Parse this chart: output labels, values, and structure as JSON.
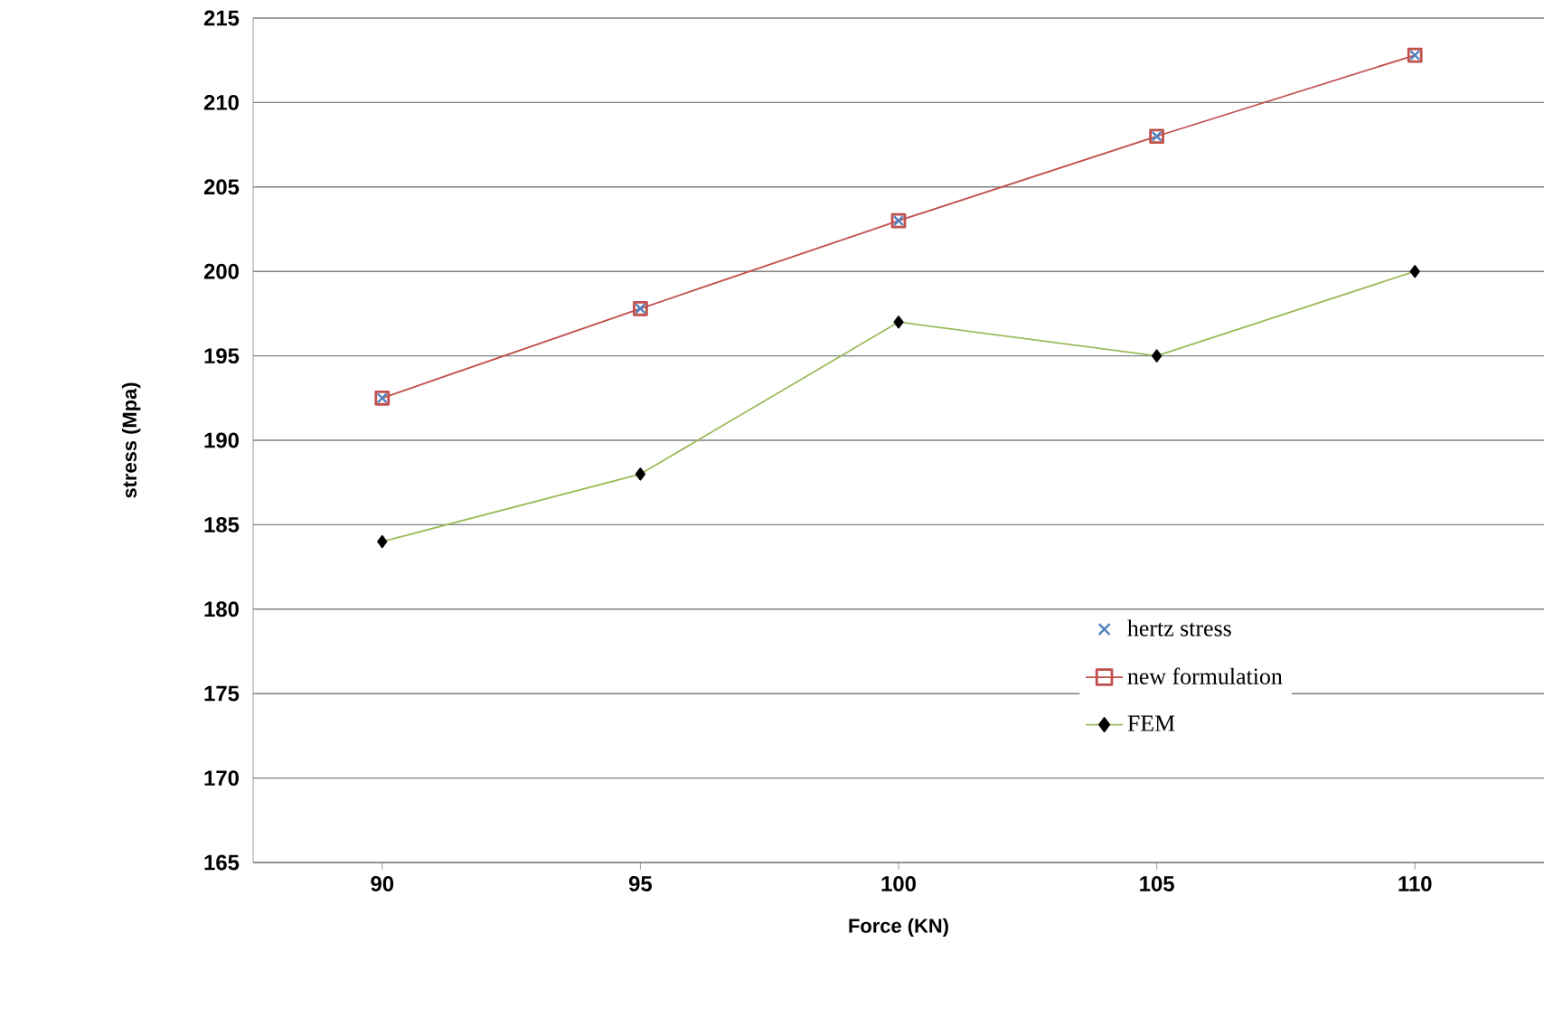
{
  "chart_data": {
    "type": "line",
    "xlabel": "Force (KN)",
    "ylabel": "stress (Mpa)",
    "categories": [
      "90",
      "95",
      "100",
      "105",
      "110"
    ],
    "series": [
      {
        "name": "hertz stress",
        "type": "scatter",
        "marker": "cross",
        "color": "#4f81bd",
        "values": [
          192.5,
          197.8,
          203,
          208,
          212.8
        ]
      },
      {
        "name": "new formulation",
        "marker": "square",
        "color": "#c0504d",
        "values": [
          192.5,
          197.8,
          203,
          208,
          212.8
        ]
      },
      {
        "name": "FEM",
        "marker": "diamond",
        "color": "#9bbb59",
        "values": [
          184,
          188,
          197,
          195,
          200
        ]
      }
    ],
    "ylim": [
      165,
      215
    ],
    "yticks": [
      165,
      170,
      175,
      180,
      185,
      190,
      195,
      200,
      205,
      210,
      215
    ],
    "grid": "y",
    "legend": "bottom right"
  }
}
